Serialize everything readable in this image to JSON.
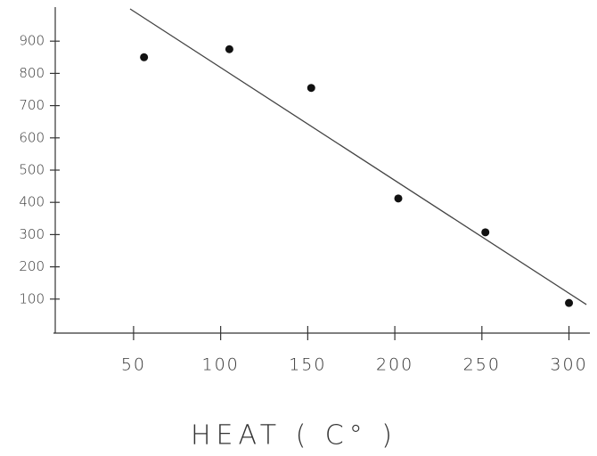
{
  "chart_data": {
    "type": "scatter",
    "x_label": "HEAT  ( C° )",
    "x": [
      56,
      105,
      152,
      202,
      252,
      300
    ],
    "y": [
      850,
      875,
      755,
      412,
      307,
      88
    ],
    "color": "#111111",
    "trendline": {
      "x": [
        48,
        310
      ],
      "y": [
        1000,
        83
      ],
      "color": "#444444"
    },
    "xlim": [
      4,
      312
    ],
    "ylim": [
      0,
      1000
    ],
    "xticks": [
      50,
      100,
      150,
      200,
      250,
      300
    ],
    "yticks": [
      100,
      200,
      300,
      400,
      500,
      600,
      700,
      800,
      900
    ]
  }
}
